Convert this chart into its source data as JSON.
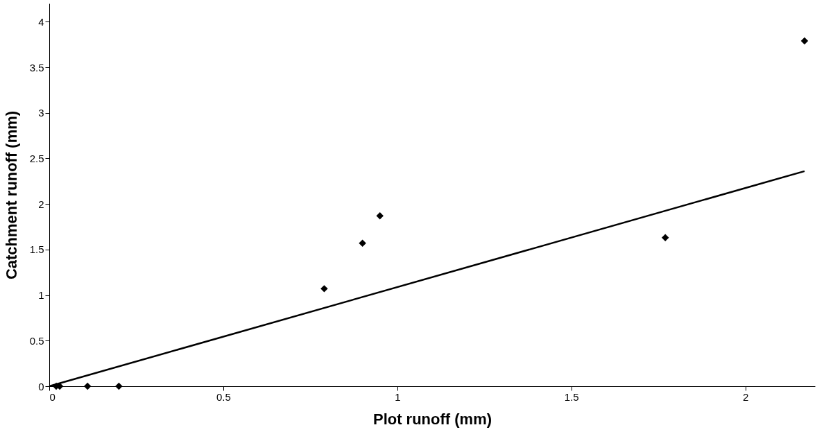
{
  "chart_data": {
    "type": "scatter",
    "xlabel": "Plot  runoff (mm)",
    "ylabel": "Catchment runoff (mm)",
    "xlim": [
      0,
      2.2
    ],
    "ylim": [
      0,
      4.2
    ],
    "xticks": [
      0,
      0.5,
      1,
      1.5,
      2
    ],
    "yticks": [
      0,
      0.5,
      1,
      1.5,
      2,
      2.5,
      3,
      3.5,
      4
    ],
    "grid": false,
    "marker": "diamond",
    "series": [
      {
        "color": "#000000",
        "x": [
          0.02,
          0.03,
          0.11,
          0.2,
          0.79,
          0.9,
          0.95,
          1.77,
          2.17
        ],
        "values": [
          0,
          0,
          0,
          0,
          1.07,
          1.57,
          1.87,
          1.63,
          3.79
        ]
      },
      {
        "type": "line",
        "color": "#000000",
        "x": [
          0,
          2.17
        ],
        "values": [
          0,
          2.36
        ],
        "line_style": "solid",
        "marker": "none"
      }
    ]
  }
}
